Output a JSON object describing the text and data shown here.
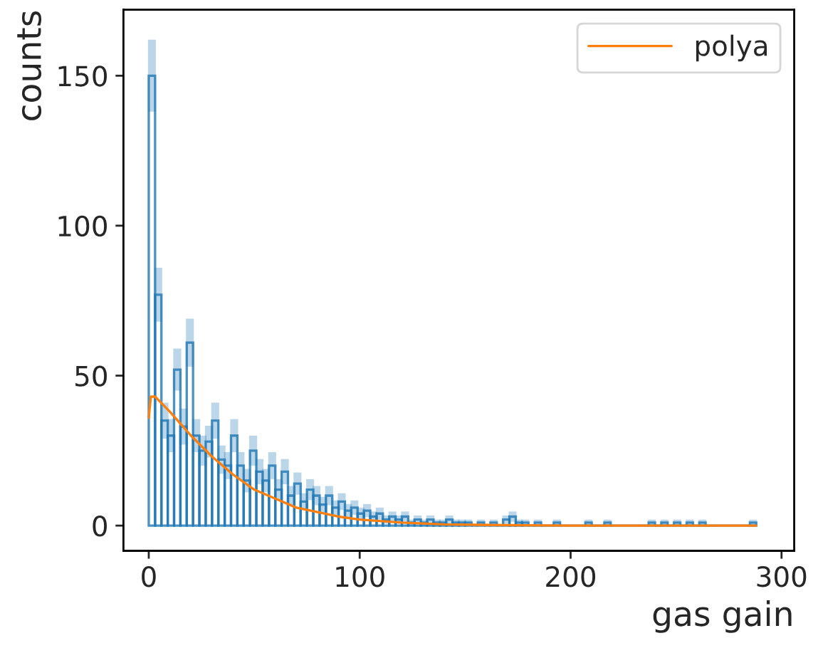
{
  "chart_data": {
    "type": "histogram",
    "xlabel": "gas gain",
    "ylabel": "counts",
    "xlim": [
      -12,
      306
    ],
    "ylim": [
      -8.4,
      172
    ],
    "xticks": [
      0,
      100,
      200,
      300
    ],
    "yticks": [
      0,
      50,
      100,
      150
    ],
    "grid": false,
    "legend": "top right",
    "bins": [
      0,
      3,
      6,
      9,
      12,
      15,
      18,
      21,
      24,
      27,
      30,
      33,
      36,
      39,
      42,
      45,
      48,
      51,
      54,
      57,
      60,
      63,
      66,
      69,
      72,
      75,
      78,
      81,
      84,
      87,
      90,
      93,
      96,
      99,
      102,
      105,
      108,
      111,
      114,
      117,
      120,
      123,
      126,
      129,
      132,
      135,
      138,
      141,
      144,
      147,
      150,
      153,
      156,
      159,
      162,
      165,
      168,
      171,
      174,
      177,
      180,
      183,
      186,
      189,
      192,
      195,
      198,
      201,
      204,
      207,
      210,
      213,
      216,
      219,
      222,
      225,
      228,
      231,
      234,
      237,
      240,
      243,
      246,
      249,
      252,
      255,
      258,
      261,
      264,
      267,
      270,
      273,
      276,
      279,
      282,
      285,
      288
    ],
    "series": [
      {
        "color": "#1f77b4",
        "values": [
          150,
          77,
          35,
          30,
          52,
          33,
          61,
          30,
          25,
          28,
          35,
          22,
          20,
          30,
          20,
          15,
          25,
          18,
          15,
          20,
          12,
          18,
          10,
          14,
          8,
          12,
          10,
          7,
          10,
          6,
          8,
          5,
          6,
          4,
          5,
          3,
          4,
          2,
          3,
          2,
          3,
          1,
          2,
          1,
          2,
          1,
          1,
          2,
          1,
          1,
          1,
          0,
          1,
          0,
          1,
          0,
          2,
          3,
          1,
          1,
          0,
          1,
          0,
          0,
          1,
          0,
          0,
          0,
          0,
          1,
          0,
          0,
          1,
          0,
          0,
          0,
          0,
          0,
          0,
          1,
          0,
          1,
          0,
          1,
          0,
          1,
          0,
          1,
          0,
          0,
          0,
          0,
          0,
          0,
          0,
          1
        ],
        "errors": [
          12,
          9,
          6,
          5.5,
          7,
          6,
          8,
          5.5,
          5,
          5.3,
          6,
          4.7,
          4.5,
          5.5,
          4.5,
          3.9,
          5,
          4.2,
          3.9,
          4.5,
          3.5,
          4.2,
          3.2,
          3.7,
          2.8,
          3.5,
          3.2,
          2.6,
          3.2,
          2.4,
          2.8,
          2.2,
          2.4,
          2,
          2.2,
          1.7,
          2,
          1.4,
          1.7,
          1.4,
          1.7,
          1,
          1.4,
          1,
          1.4,
          1,
          1,
          1.4,
          1,
          1,
          1,
          0,
          1,
          0,
          1,
          0,
          1.4,
          1.7,
          1,
          1,
          0,
          1,
          0,
          0,
          1,
          0,
          0,
          0,
          0,
          1,
          0,
          0,
          1,
          0,
          0,
          0,
          0,
          0,
          0,
          1,
          0,
          1,
          0,
          1,
          0,
          1,
          0,
          1,
          0,
          0,
          0,
          0,
          0,
          0,
          0,
          1
        ]
      },
      {
        "type": "line",
        "name": "polya",
        "color": "#ff7f0e",
        "x": [
          0,
          1,
          3,
          10,
          20,
          30,
          40,
          50,
          60,
          70,
          80,
          90,
          100,
          120,
          140,
          160,
          200,
          288
        ],
        "values": [
          36,
          43,
          43,
          38,
          30,
          23,
          17,
          12,
          9,
          6,
          4.5,
          3,
          2,
          1,
          0.4,
          0.2,
          0,
          0
        ]
      }
    ]
  }
}
